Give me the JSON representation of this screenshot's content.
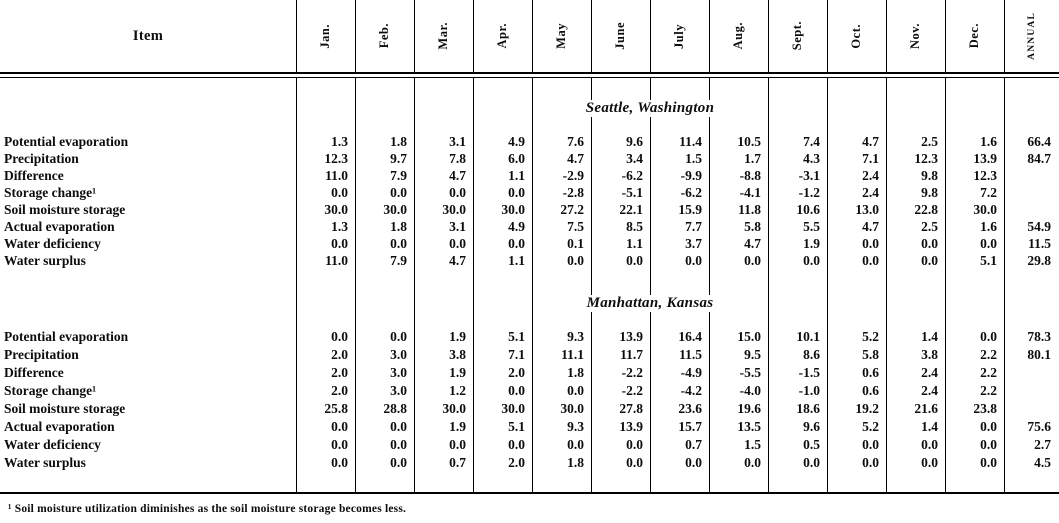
{
  "page": {
    "background": "#ffffff",
    "text_color": "#000000",
    "rule_color": "#000000"
  },
  "table": {
    "item_header": "Item",
    "month_headers": [
      "Jan.",
      "Feb.",
      "Mar.",
      "Apr.",
      "May",
      "June",
      "July",
      "Aug.",
      "Sept.",
      "Oct.",
      "Nov.",
      "Dec."
    ],
    "annual_header": "ANNUAL",
    "sections": [
      {
        "title": "Seattle, Washington",
        "rows": [
          {
            "label": "Potential evaporation",
            "values": [
              "1.3",
              "1.8",
              "3.1",
              "4.9",
              "7.6",
              "9.6",
              "11.4",
              "10.5",
              "7.4",
              "4.7",
              "2.5",
              "1.6"
            ],
            "annual": "66.4"
          },
          {
            "label": "Precipitation",
            "values": [
              "12.3",
              "9.7",
              "7.8",
              "6.0",
              "4.7",
              "3.4",
              "1.5",
              "1.7",
              "4.3",
              "7.1",
              "12.3",
              "13.9"
            ],
            "annual": "84.7"
          },
          {
            "label": "Difference",
            "values": [
              "11.0",
              "7.9",
              "4.7",
              "1.1",
              "-2.9",
              "-6.2",
              "-9.9",
              "-8.8",
              "-3.1",
              "2.4",
              "9.8",
              "12.3"
            ],
            "annual": ""
          },
          {
            "label": "Storage change¹",
            "values": [
              "0.0",
              "0.0",
              "0.0",
              "0.0",
              "-2.8",
              "-5.1",
              "-6.2",
              "-4.1",
              "-1.2",
              "2.4",
              "9.8",
              "7.2"
            ],
            "annual": ""
          },
          {
            "label": "Soil moisture storage",
            "values": [
              "30.0",
              "30.0",
              "30.0",
              "30.0",
              "27.2",
              "22.1",
              "15.9",
              "11.8",
              "10.6",
              "13.0",
              "22.8",
              "30.0"
            ],
            "annual": ""
          },
          {
            "label": "Actual evaporation",
            "values": [
              "1.3",
              "1.8",
              "3.1",
              "4.9",
              "7.5",
              "8.5",
              "7.7",
              "5.8",
              "5.5",
              "4.7",
              "2.5",
              "1.6"
            ],
            "annual": "54.9"
          },
          {
            "label": "Water deficiency",
            "values": [
              "0.0",
              "0.0",
              "0.0",
              "0.0",
              "0.1",
              "1.1",
              "3.7",
              "4.7",
              "1.9",
              "0.0",
              "0.0",
              "0.0"
            ],
            "annual": "11.5"
          },
          {
            "label": "Water surplus",
            "values": [
              "11.0",
              "7.9",
              "4.7",
              "1.1",
              "0.0",
              "0.0",
              "0.0",
              "0.0",
              "0.0",
              "0.0",
              "0.0",
              "5.1"
            ],
            "annual": "29.8"
          }
        ]
      },
      {
        "title": "Manhattan, Kansas",
        "rows": [
          {
            "label": "Potential evaporation",
            "values": [
              "0.0",
              "0.0",
              "1.9",
              "5.1",
              "9.3",
              "13.9",
              "16.4",
              "15.0",
              "10.1",
              "5.2",
              "1.4",
              "0.0"
            ],
            "annual": "78.3"
          },
          {
            "label": "Precipitation",
            "values": [
              "2.0",
              "3.0",
              "3.8",
              "7.1",
              "11.1",
              "11.7",
              "11.5",
              "9.5",
              "8.6",
              "5.8",
              "3.8",
              "2.2"
            ],
            "annual": "80.1"
          },
          {
            "label": "Difference",
            "values": [
              "2.0",
              "3.0",
              "1.9",
              "2.0",
              "1.8",
              "-2.2",
              "-4.9",
              "-5.5",
              "-1.5",
              "0.6",
              "2.4",
              "2.2"
            ],
            "annual": ""
          },
          {
            "label": "Storage change¹",
            "values": [
              "2.0",
              "3.0",
              "1.2",
              "0.0",
              "0.0",
              "-2.2",
              "-4.2",
              "-4.0",
              "-1.0",
              "0.6",
              "2.4",
              "2.2"
            ],
            "annual": ""
          },
          {
            "label": "Soil moisture storage",
            "values": [
              "25.8",
              "28.8",
              "30.0",
              "30.0",
              "30.0",
              "27.8",
              "23.6",
              "19.6",
              "18.6",
              "19.2",
              "21.6",
              "23.8"
            ],
            "annual": ""
          },
          {
            "label": "Actual evaporation",
            "values": [
              "0.0",
              "0.0",
              "1.9",
              "5.1",
              "9.3",
              "13.9",
              "15.7",
              "13.5",
              "9.6",
              "5.2",
              "1.4",
              "0.0"
            ],
            "annual": "75.6"
          },
          {
            "label": "Water deficiency",
            "values": [
              "0.0",
              "0.0",
              "0.0",
              "0.0",
              "0.0",
              "0.0",
              "0.7",
              "1.5",
              "0.5",
              "0.0",
              "0.0",
              "0.0"
            ],
            "annual": "2.7"
          },
          {
            "label": "Water surplus",
            "values": [
              "0.0",
              "0.0",
              "0.7",
              "2.0",
              "1.8",
              "0.0",
              "0.0",
              "0.0",
              "0.0",
              "0.0",
              "0.0",
              "0.0"
            ],
            "annual": "4.5"
          }
        ]
      }
    ],
    "footnote": "¹ Soil moisture utilization diminishes as the soil moisture storage becomes less."
  }
}
